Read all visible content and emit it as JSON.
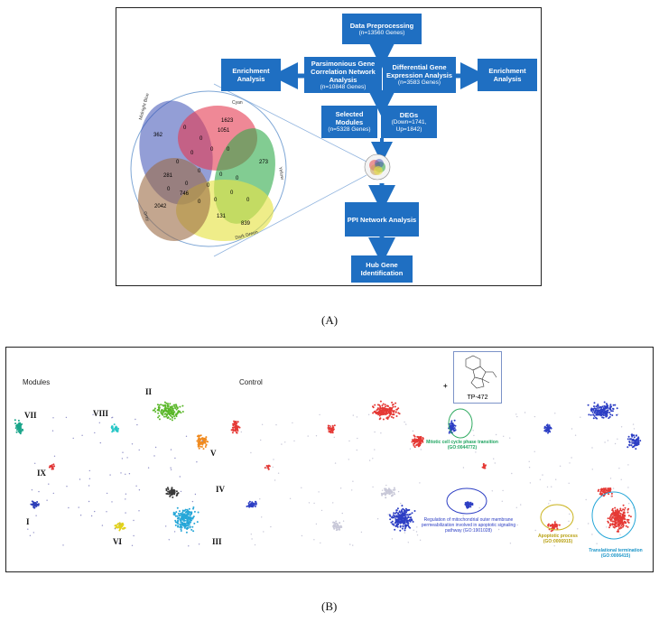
{
  "panel_a": {
    "caption": "(A)",
    "boxes": {
      "preprocessing": {
        "title": "Data Preprocessing",
        "sub": "(n=13560 Genes)"
      },
      "pgcna": {
        "title": "Parsimonious Gene Correlation Network Analysis",
        "sub": "(n=10848 Genes)"
      },
      "dgea": {
        "title": "Differential Gene Expression Analysis",
        "sub": "(n=3583 Genes)"
      },
      "enrich_left": {
        "title": "Enrichment Analysis"
      },
      "enrich_right": {
        "title": "Enrichment Analysis"
      },
      "modules": {
        "title": "Selected Modules",
        "sub": "(n=5328 Genes)"
      },
      "degs": {
        "title": "DEGs",
        "sub": "(Down=1741, Up=1842)"
      },
      "ppi": {
        "title": "PPI Network Analysis"
      },
      "hub": {
        "title": "Hub Gene Identification"
      }
    },
    "venn": {
      "sets": [
        "Midnight Blue",
        "Cyan",
        "Yellow",
        "Dark Green",
        "Grey"
      ],
      "numbers": [
        "1623",
        "1051",
        "362",
        "273",
        "281",
        "746",
        "2042",
        "131",
        "839"
      ],
      "zero": "0"
    }
  },
  "panel_b": {
    "caption": "(B)",
    "titles": {
      "modules": "Modules",
      "control": "Control",
      "plus": "+",
      "drug": "TP-472"
    },
    "module_labels": [
      "I",
      "II",
      "III",
      "IV",
      "V",
      "VI",
      "VII",
      "VIII",
      "IX"
    ],
    "annotations": {
      "mitotic": "Mitotic cell cycle phase transition (GO:0044772)",
      "mito_membrane": "Regulation of mitochondrial outer membrane permeabilization involved in apoptotic signaling pathway (GO:1901028)",
      "apoptotic": "Apoptotic process (GO:0006915)",
      "translational": "Translational termination (GO:0006415)"
    },
    "colors": {
      "I": "#2e3fb8",
      "II": "#5bb82a",
      "III": "#27a7d8",
      "IV": "#3a3a3a",
      "V": "#f08a1e",
      "VI": "#e2d21a",
      "VII": "#1aa58a",
      "VIII": "#2ac7c7",
      "IX": "#e03030",
      "up": "#e53935",
      "down": "#2d3fc4",
      "neutral": "#c8c8d8"
    }
  }
}
